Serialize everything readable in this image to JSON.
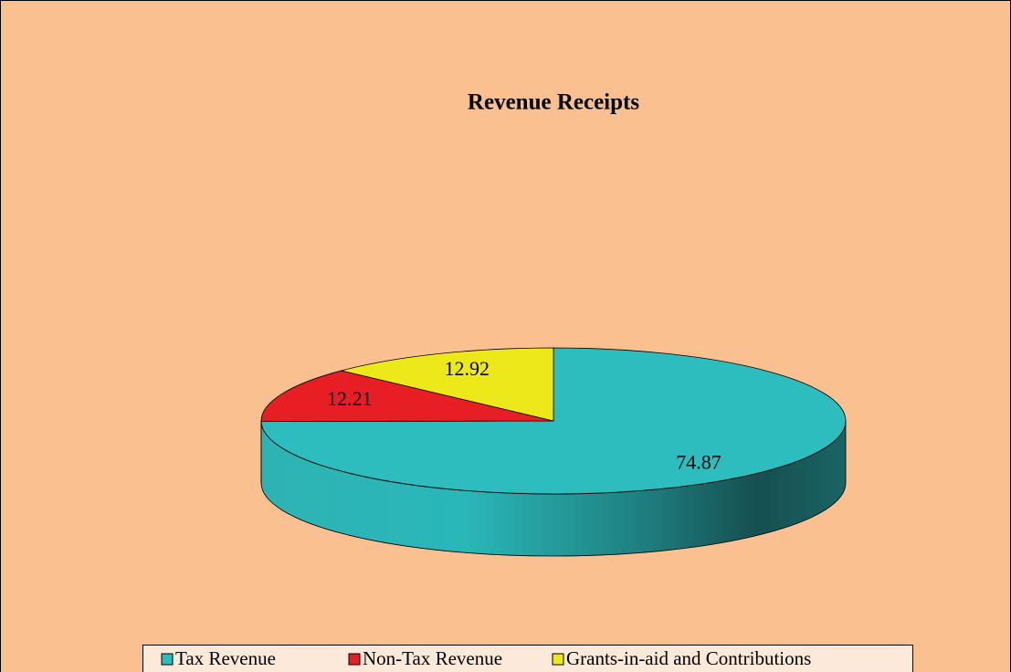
{
  "chart_data": {
    "type": "pie",
    "title": "Revenue Receipts",
    "categories": [
      "Tax Revenue",
      "Non-Tax Revenue",
      "Grants-in-aid and Contributions"
    ],
    "values": [
      74.87,
      12.21,
      12.92
    ],
    "colors": [
      "#2EBDBE",
      "#E81E25",
      "#EDE81A"
    ],
    "legend": "bottom"
  }
}
